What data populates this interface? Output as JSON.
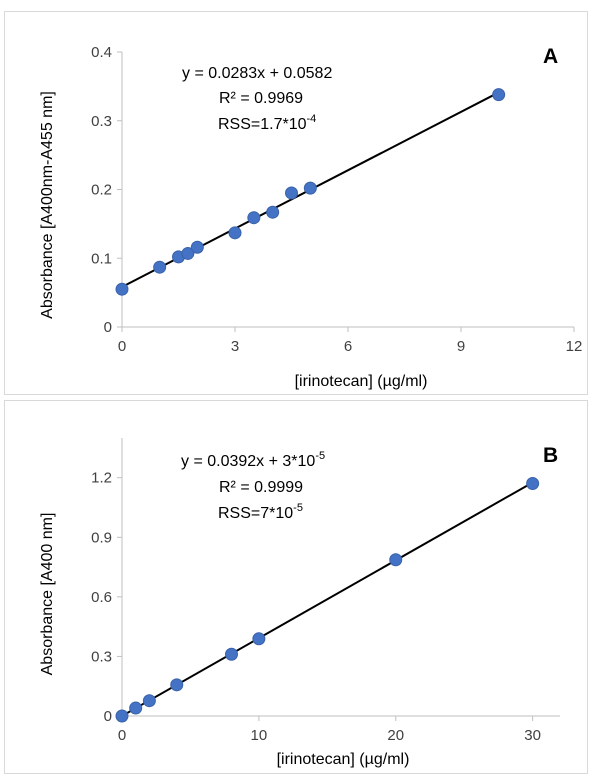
{
  "chart_data": [
    {
      "type": "scatter",
      "panel_label": "A",
      "xlabel": "[irinotecan] (µg/ml)",
      "ylabel": "Absorbance [A400nm-A455 nm]",
      "xlim": [
        0,
        12
      ],
      "ylim": [
        0,
        0.4
      ],
      "xticks": [
        "0",
        "3",
        "6",
        "9",
        "12"
      ],
      "yticks": [
        "0",
        "0.1",
        "0.2",
        "0.3",
        "0.4"
      ],
      "grid": false,
      "series": [
        {
          "x": [
            0,
            1,
            1.5,
            1.75,
            2,
            3,
            3.5,
            4,
            4.5,
            5,
            10
          ],
          "y": [
            0.055,
            0.087,
            0.102,
            0.107,
            0.116,
            0.137,
            0.159,
            0.167,
            0.195,
            0.202,
            0.338
          ]
        }
      ],
      "trendline": {
        "slope": 0.0283,
        "intercept": 0.0582
      },
      "annotations": {
        "equation": "y = 0.0283x + 0.0582",
        "r2": "R² = 0.9969",
        "rss_base": "RSS=1.7*10",
        "rss_exp": "-4"
      },
      "marker_color": "#4472c4",
      "line_color": "#000000"
    },
    {
      "type": "scatter",
      "panel_label": "B",
      "xlabel": "[irinotecan] (µg/ml)",
      "ylabel": "Absorbance [A400 nm]",
      "xlim": [
        0,
        32
      ],
      "ylim": [
        0,
        1.4
      ],
      "xticks": [
        "0",
        "10",
        "20",
        "30"
      ],
      "yticks": [
        "0",
        "0.3",
        "0.6",
        "0.9",
        "1.2"
      ],
      "grid": false,
      "series": [
        {
          "x": [
            0,
            1,
            2,
            4,
            8,
            10,
            20,
            30
          ],
          "y": [
            0.0,
            0.04,
            0.077,
            0.157,
            0.311,
            0.389,
            0.787,
            1.171
          ]
        }
      ],
      "trendline": {
        "slope": 0.0392,
        "intercept": 3e-05
      },
      "annotations": {
        "equation_base": "y = 0.0392x + 3*10",
        "equation_exp": "-5",
        "r2": "R² = 0.9999",
        "rss_base": "RSS=7*10",
        "rss_exp": "-5"
      },
      "marker_color": "#4472c4",
      "line_color": "#000000"
    }
  ]
}
